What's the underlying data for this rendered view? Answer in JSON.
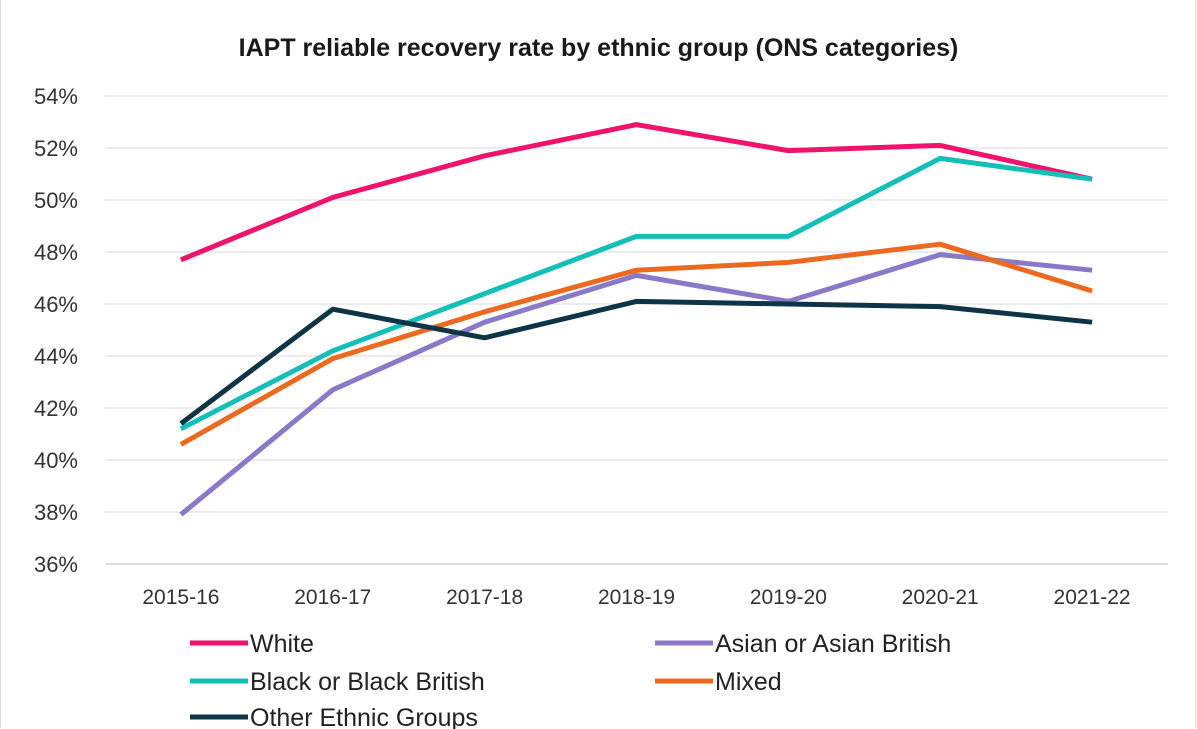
{
  "chart_data": {
    "type": "line",
    "title": "IAPT reliable recovery rate by ethnic group (ONS categories)",
    "xlabel": "",
    "ylabel": "",
    "categories": [
      "2015-16",
      "2016-17",
      "2017-18",
      "2018-19",
      "2019-20",
      "2020-21",
      "2021-22"
    ],
    "ylim": [
      36,
      54
    ],
    "yticks": [
      "36%",
      "38%",
      "40%",
      "42%",
      "44%",
      "46%",
      "48%",
      "50%",
      "52%",
      "54%"
    ],
    "grid": "horizontal",
    "legend_position": "bottom",
    "series": [
      {
        "name": "White",
        "color": "#f0136b",
        "values": [
          47.7,
          50.1,
          51.7,
          52.9,
          51.9,
          52.1,
          50.8
        ]
      },
      {
        "name": "Asian or Asian British",
        "color": "#8a78c8",
        "values": [
          37.9,
          42.7,
          45.3,
          47.1,
          46.1,
          47.9,
          47.3
        ]
      },
      {
        "name": "Black or Black British",
        "color": "#14bfb8",
        "values": [
          41.2,
          44.2,
          46.4,
          48.6,
          48.6,
          51.6,
          50.8
        ]
      },
      {
        "name": "Mixed",
        "color": "#ec6a1f",
        "values": [
          40.6,
          43.9,
          45.7,
          47.3,
          47.6,
          48.3,
          46.5
        ]
      },
      {
        "name": "Other Ethnic Groups",
        "color": "#0d3547",
        "values": [
          41.4,
          45.8,
          44.7,
          46.1,
          46.0,
          45.9,
          45.3
        ]
      }
    ]
  }
}
